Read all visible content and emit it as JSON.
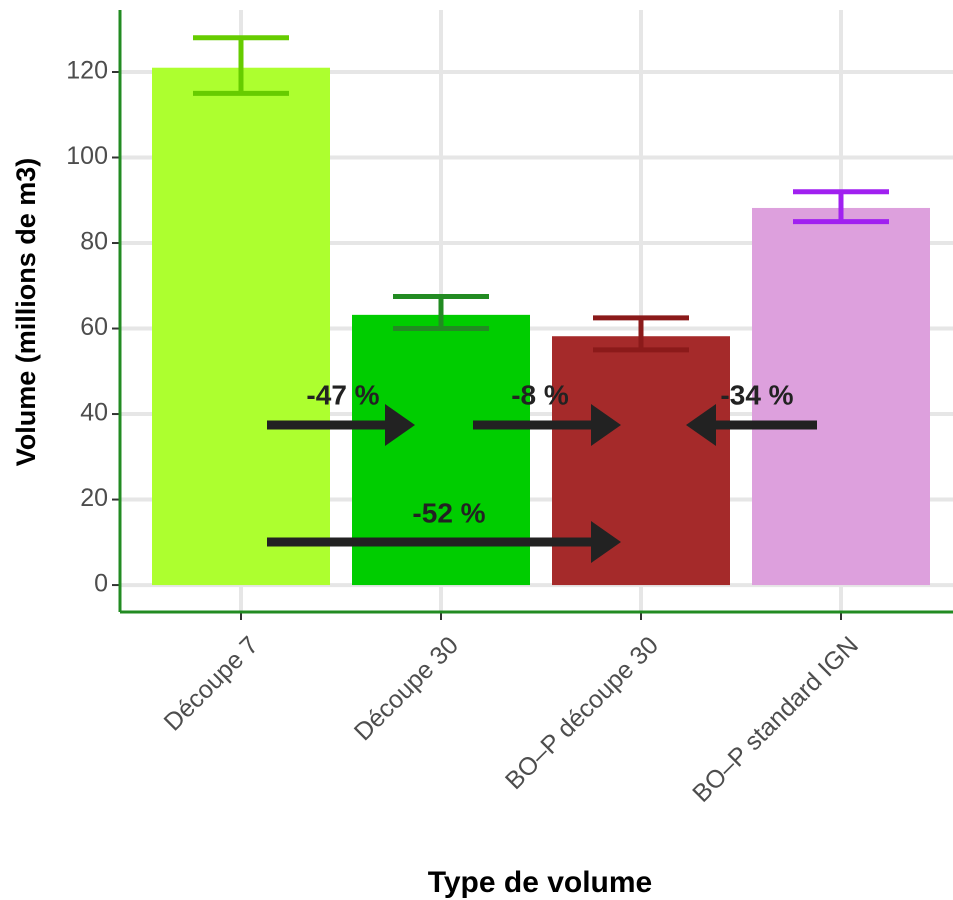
{
  "chart_data": {
    "type": "bar",
    "x_label": "Type de volume",
    "y_label": "Volume (millions de m3)",
    "categories": [
      "Découpe 7",
      "Découpe 30",
      "BO–P découpe 30",
      "BO–P standard IGN"
    ],
    "values": [
      121,
      63.2,
      58.2,
      88.2
    ],
    "error_low": [
      115,
      60,
      55,
      85
    ],
    "error_high": [
      128,
      67.5,
      62.5,
      92
    ],
    "colors": [
      "#adff2f",
      "#00cd00",
      "#a52a2a",
      "#dda0dd"
    ],
    "error_colors": [
      "#66cc00",
      "#228b22",
      "#8b1a1a",
      "#a020f0"
    ],
    "annotations": [
      "-47 %",
      "-8 %",
      "-34 %",
      "-52 %"
    ],
    "ylim": [
      -6.3,
      134.5
    ],
    "yticks": [
      0,
      20,
      40,
      60,
      80,
      100,
      120
    ],
    "grid": true
  }
}
